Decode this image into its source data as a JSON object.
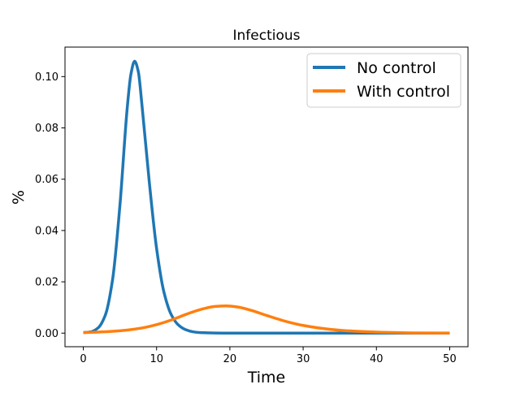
{
  "chart_data": {
    "type": "line",
    "title": "Infectious",
    "xlabel": "Time",
    "ylabel": "%",
    "xlim": [
      -2.5,
      52.5
    ],
    "ylim": [
      -0.0053,
      0.1115
    ],
    "x_ticks": [
      0,
      10,
      20,
      30,
      40,
      50
    ],
    "y_ticks": [
      0.0,
      0.02,
      0.04,
      0.06,
      0.08,
      0.1
    ],
    "x_tick_labels": [
      "0",
      "10",
      "20",
      "30",
      "40",
      "50"
    ],
    "y_tick_labels": [
      "0.00",
      "0.02",
      "0.04",
      "0.06",
      "0.08",
      "0.10"
    ],
    "grid": false,
    "legend_position": "top-right",
    "series": [
      {
        "name": "No control",
        "color": "#1f77b4",
        "x": [
          0,
          1,
          2,
          3,
          4,
          5,
          6,
          6.5,
          7,
          7.5,
          8,
          9,
          10,
          11,
          12,
          13,
          14,
          15,
          16,
          18,
          20,
          25,
          30,
          40,
          50
        ],
        "y": [
          0.0002,
          0.0005,
          0.002,
          0.007,
          0.021,
          0.05,
          0.088,
          0.101,
          0.106,
          0.102,
          0.089,
          0.059,
          0.033,
          0.016,
          0.0072,
          0.0031,
          0.0013,
          0.0005,
          0.0002,
          4e-05,
          0.0,
          0.0,
          0.0,
          0.0,
          0.0
        ]
      },
      {
        "name": "With control",
        "color": "#ff7f0e",
        "x": [
          0,
          2,
          4,
          6,
          8,
          10,
          12,
          14,
          16,
          18,
          19.5,
          21,
          23,
          25,
          28,
          30,
          33,
          36,
          40,
          45,
          50
        ],
        "y": [
          0.0002,
          0.0004,
          0.0007,
          0.0012,
          0.002,
          0.0033,
          0.0051,
          0.0073,
          0.0092,
          0.0104,
          0.0106,
          0.0102,
          0.0088,
          0.0069,
          0.0043,
          0.003,
          0.0017,
          0.0009,
          0.0004,
          0.0001,
          3e-05
        ]
      }
    ]
  }
}
